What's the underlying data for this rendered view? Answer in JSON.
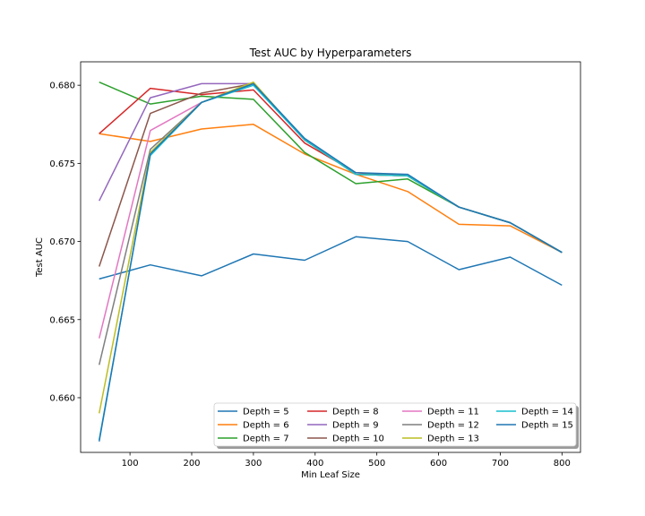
{
  "chart_data": {
    "type": "line",
    "title": "Test AUC by Hyperparameters",
    "xlabel": "Min Leaf Size",
    "ylabel": "Test AUC",
    "x": [
      50,
      133,
      216,
      300,
      383,
      466,
      550,
      633,
      716,
      800
    ],
    "xlim": [
      20,
      830
    ],
    "ylim": [
      0.6565,
      0.6815
    ],
    "xticks": [
      100,
      200,
      300,
      400,
      500,
      600,
      700,
      800
    ],
    "xtick_labels": [
      "100",
      "200",
      "300",
      "400",
      "500",
      "600",
      "700",
      "800"
    ],
    "yticks": [
      0.66,
      0.665,
      0.67,
      0.675,
      0.68
    ],
    "ytick_labels": [
      "0.660",
      "0.665",
      "0.670",
      "0.675",
      "0.680"
    ],
    "grid": false,
    "legend_position": "lower-right",
    "legend_columns": 4,
    "series": [
      {
        "name": "Depth = 5",
        "color": "#1f77b4",
        "values": [
          0.6676,
          0.6685,
          0.6678,
          0.6692,
          0.6688,
          0.6703,
          0.67,
          0.6682,
          0.669,
          0.6672
        ]
      },
      {
        "name": "Depth = 6",
        "color": "#ff7f0e",
        "values": [
          0.6769,
          0.6764,
          0.6772,
          0.6775,
          0.6756,
          0.6743,
          0.6732,
          0.6711,
          0.671,
          0.6693
        ]
      },
      {
        "name": "Depth = 7",
        "color": "#2ca02c",
        "values": [
          0.6802,
          0.6788,
          0.6793,
          0.6791,
          0.6757,
          0.6737,
          0.674,
          0.6722,
          0.6712,
          0.6693
        ]
      },
      {
        "name": "Depth = 8",
        "color": "#d62728",
        "values": [
          0.6769,
          0.6798,
          0.6794,
          0.6797,
          0.6763,
          0.6744,
          0.6742,
          0.6722,
          0.6712,
          0.6693
        ]
      },
      {
        "name": "Depth = 9",
        "color": "#9467bd",
        "values": [
          0.6726,
          0.6792,
          0.6801,
          0.6801,
          0.6765,
          0.6743,
          0.6742,
          0.6722,
          0.6712,
          0.6693
        ]
      },
      {
        "name": "Depth = 10",
        "color": "#8c564b",
        "values": [
          0.6684,
          0.6782,
          0.6795,
          0.6801,
          0.6765,
          0.6743,
          0.6742,
          0.6722,
          0.6712,
          0.6693
        ]
      },
      {
        "name": "Depth = 11",
        "color": "#e377c2",
        "values": [
          0.6638,
          0.6771,
          0.6789,
          0.6801,
          0.6765,
          0.6743,
          0.6742,
          0.6722,
          0.6712,
          0.6693
        ]
      },
      {
        "name": "Depth = 12",
        "color": "#7f7f7f",
        "values": [
          0.6621,
          0.6759,
          0.6789,
          0.6801,
          0.6765,
          0.6743,
          0.6742,
          0.6722,
          0.6712,
          0.6693
        ]
      },
      {
        "name": "Depth = 13",
        "color": "#bcbd22",
        "values": [
          0.659,
          0.6757,
          0.6789,
          0.6802,
          0.6765,
          0.6743,
          0.6742,
          0.6722,
          0.6712,
          0.6693
        ]
      },
      {
        "name": "Depth = 14",
        "color": "#17becf",
        "values": [
          0.6573,
          0.6755,
          0.6789,
          0.68,
          0.6765,
          0.6743,
          0.6742,
          0.6722,
          0.6712,
          0.6693
        ]
      },
      {
        "name": "Depth = 15",
        "color": "#1f77b4",
        "values": [
          0.6572,
          0.6756,
          0.6789,
          0.6801,
          0.6766,
          0.6744,
          0.6743,
          0.6722,
          0.6712,
          0.6693
        ]
      }
    ]
  }
}
